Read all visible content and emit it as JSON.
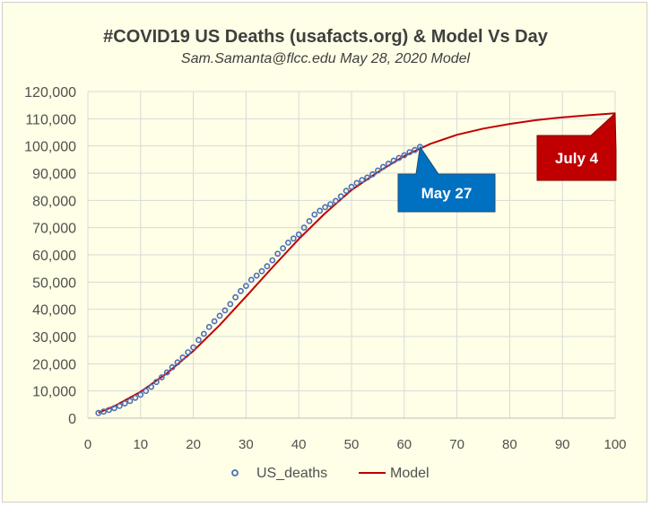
{
  "chart_data": {
    "type": "line",
    "title": "#COVID19 US Deaths (usafacts.org) & Model Vs Day",
    "subtitle": "Sam.Samanta@flcc.edu  May 28, 2020  Model",
    "xlabel": "",
    "ylabel": "",
    "xlim": [
      0,
      100
    ],
    "ylim": [
      0,
      120000
    ],
    "x_ticks": [
      "0",
      "10",
      "20",
      "30",
      "40",
      "50",
      "60",
      "70",
      "80",
      "90",
      "100"
    ],
    "y_ticks": [
      "0",
      "10,000",
      "20,000",
      "30,000",
      "40,000",
      "50,000",
      "60,000",
      "70,000",
      "80,000",
      "90,000",
      "100,000",
      "110,000",
      "120,000"
    ],
    "grid": true,
    "legend_position": "bottom",
    "series": [
      {
        "name": "US_deaths",
        "style": "markers",
        "color": "#4a6fb5",
        "x": [
          2,
          3,
          4,
          5,
          6,
          7,
          8,
          9,
          10,
          11,
          12,
          13,
          14,
          15,
          16,
          17,
          18,
          19,
          20,
          21,
          22,
          23,
          24,
          25,
          26,
          27,
          28,
          29,
          30,
          31,
          32,
          33,
          34,
          35,
          36,
          37,
          38,
          39,
          40,
          41,
          42,
          43,
          44,
          45,
          46,
          47,
          48,
          49,
          50,
          51,
          52,
          53,
          54,
          55,
          56,
          57,
          58,
          59,
          60,
          61,
          62,
          63
        ],
        "y": [
          1900,
          2400,
          3000,
          3700,
          4500,
          5400,
          6300,
          7500,
          8600,
          10000,
          11500,
          13300,
          15000,
          16800,
          18700,
          20500,
          22300,
          24200,
          26000,
          28700,
          31000,
          33500,
          35600,
          37600,
          39600,
          41900,
          44400,
          46700,
          48600,
          50800,
          52400,
          54000,
          55800,
          58000,
          60400,
          62400,
          64500,
          66000,
          67500,
          70000,
          72400,
          74800,
          76200,
          77500,
          78600,
          79800,
          81500,
          83500,
          85000,
          86400,
          87500,
          88400,
          89600,
          91000,
          92300,
          93500,
          94600,
          95600,
          96600,
          97700,
          98500,
          99700
        ]
      },
      {
        "name": "Model",
        "style": "line",
        "color": "#c00000",
        "x": [
          2,
          5,
          10,
          15,
          20,
          25,
          30,
          35,
          40,
          45,
          50,
          55,
          60,
          65,
          70,
          75,
          80,
          85,
          90,
          95,
          100
        ],
        "y": [
          2000,
          4400,
          9700,
          16500,
          24700,
          34200,
          44700,
          55400,
          65800,
          75300,
          83800,
          90400,
          96300,
          100800,
          104100,
          106400,
          108100,
          109500,
          110500,
          111300,
          112000
        ]
      }
    ],
    "annotations": [
      {
        "text": "May 27",
        "x": 63,
        "y": 99700,
        "color": "#0070c0"
      },
      {
        "text": "July 4",
        "x": 100,
        "y": 112000,
        "color": "#c00000"
      }
    ]
  }
}
